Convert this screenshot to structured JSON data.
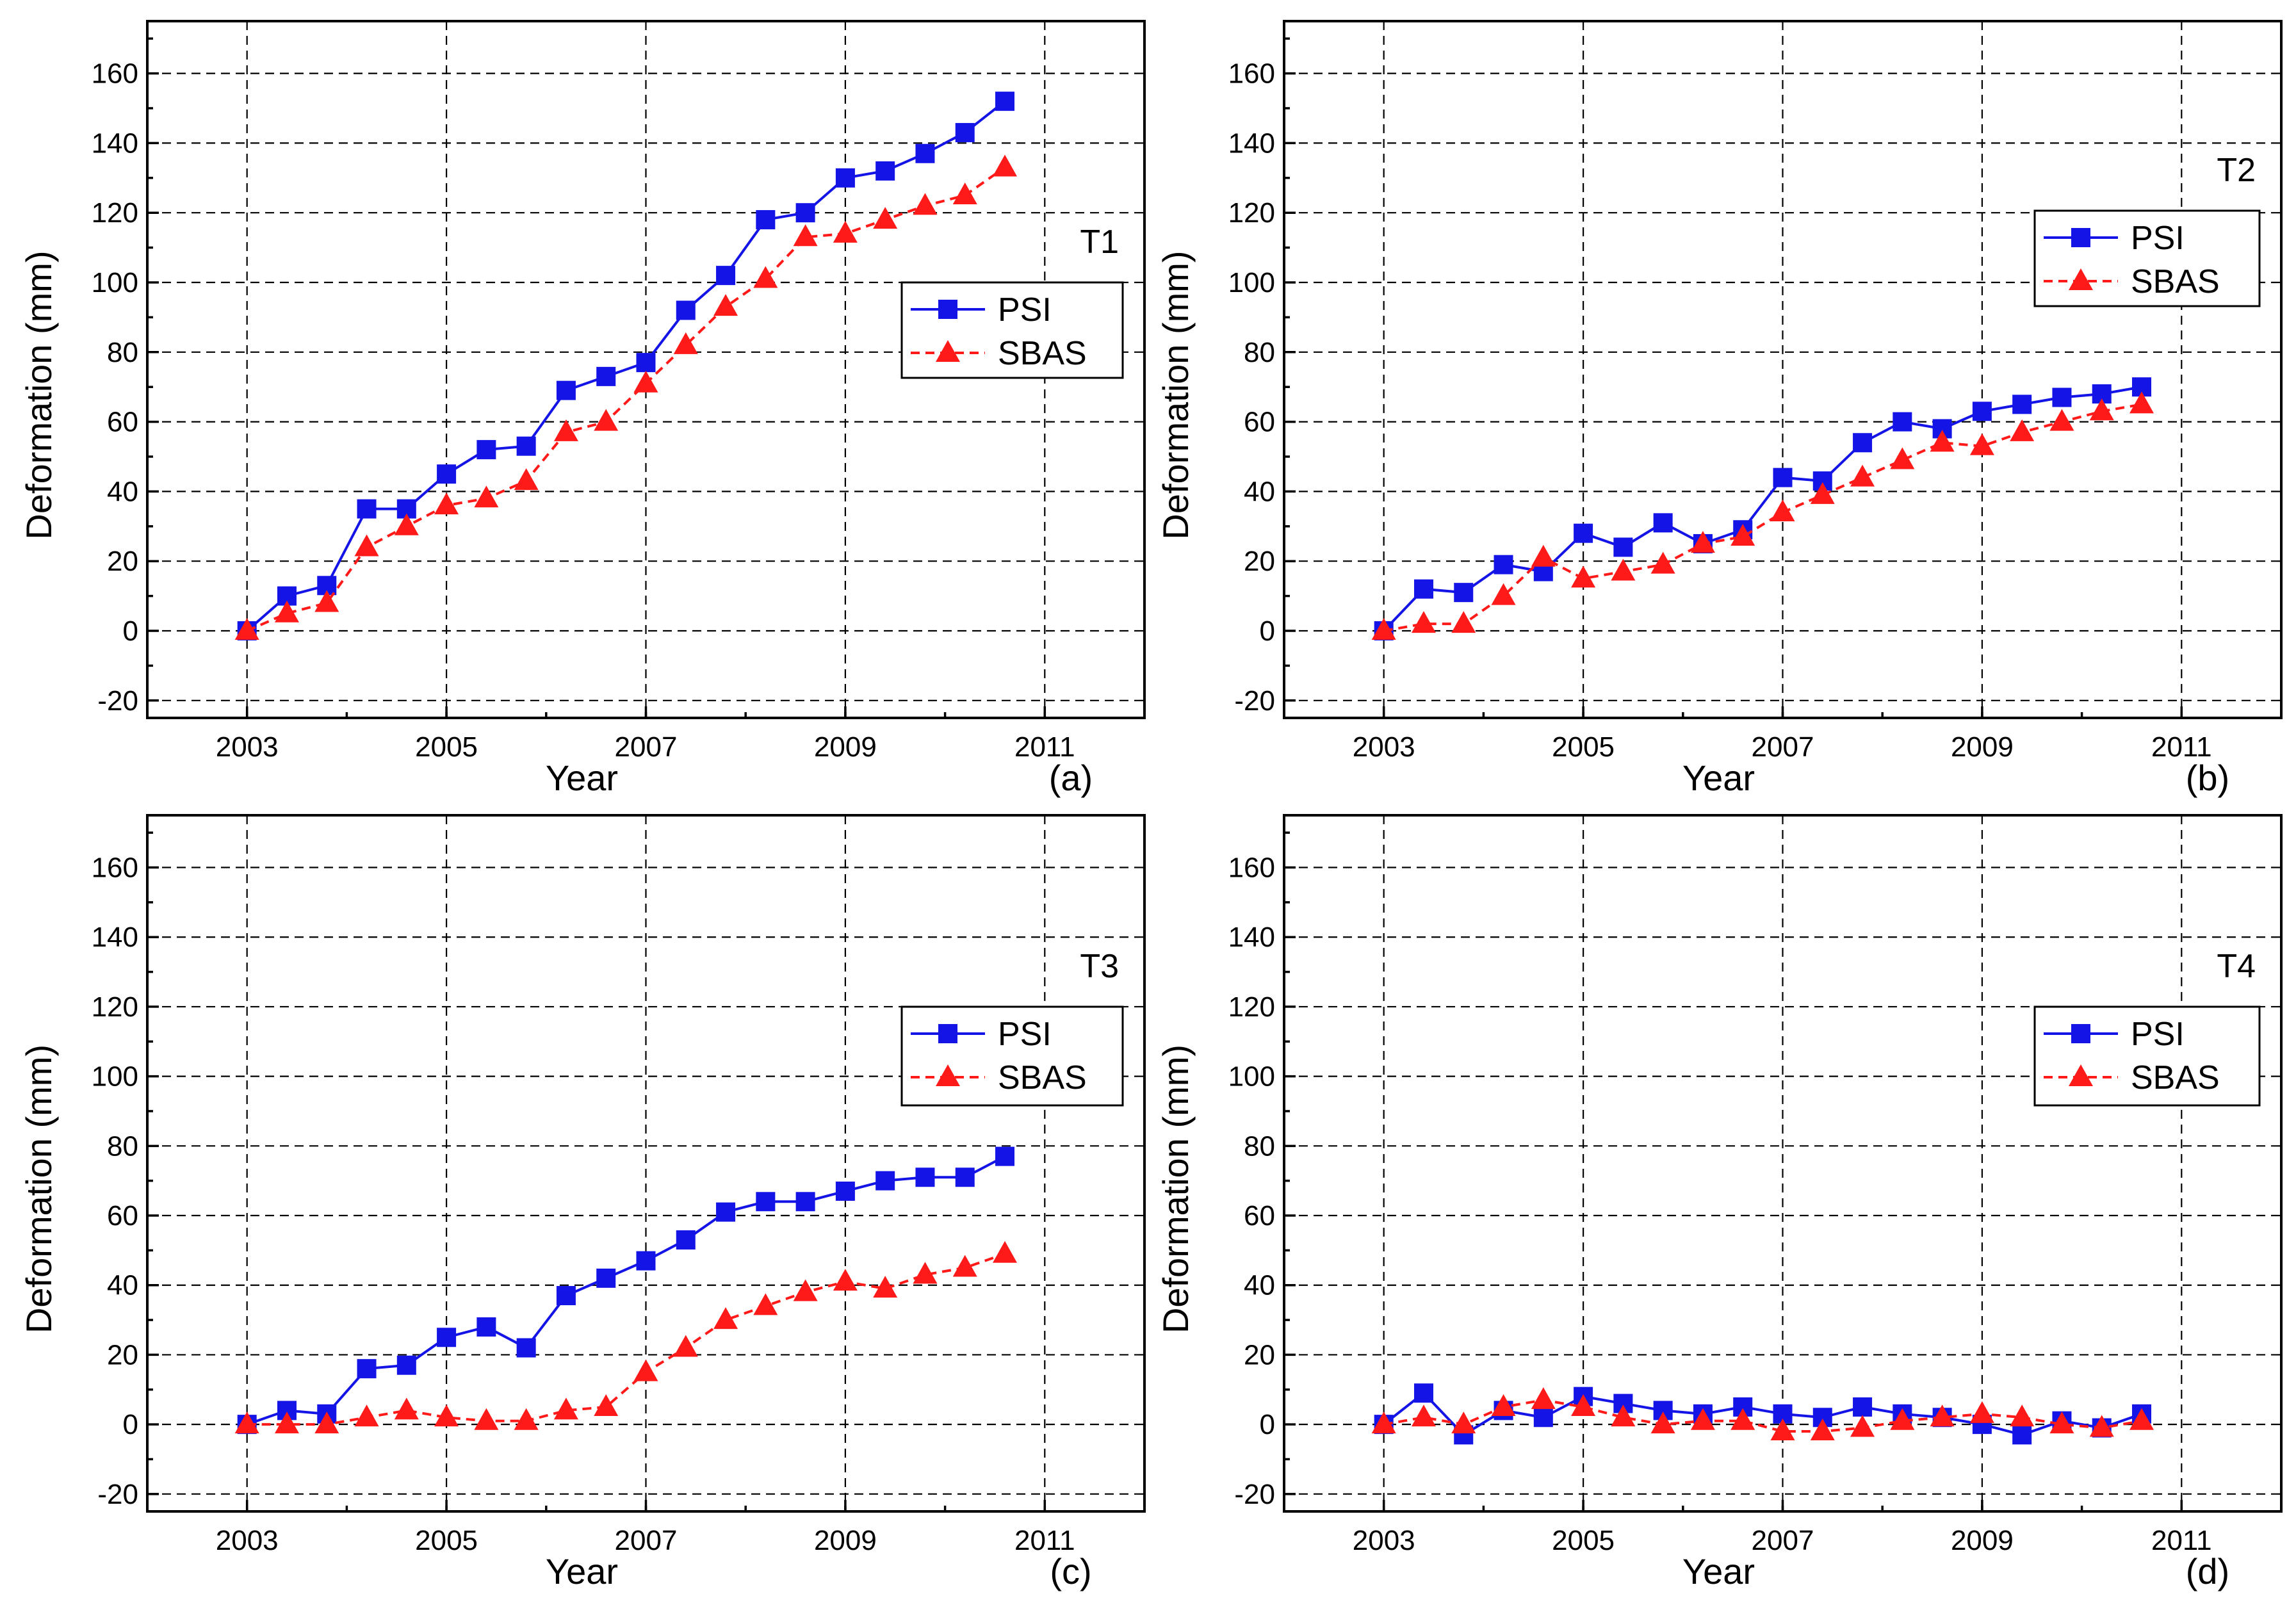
{
  "figure": {
    "series_style": {
      "PSI": {
        "color": "#1414e6",
        "marker": "square",
        "line": "solid"
      },
      "SBAS": {
        "color": "#ff1a1a",
        "marker": "triangle",
        "line": "dashed"
      }
    }
  },
  "chart_data": [
    {
      "type": "line",
      "panel_label": "(a)",
      "title": "T1",
      "xlabel": "Year",
      "ylabel": "Deformation (mm)",
      "xlim": [
        2002.0,
        2012.0
      ],
      "ylim": [
        -25,
        175
      ],
      "xticks": [
        "2003",
        "2005",
        "2007",
        "2009",
        "2011"
      ],
      "yticks": [
        "-20",
        "0",
        "20",
        "40",
        "60",
        "80",
        "100",
        "120",
        "140",
        "160"
      ],
      "grid": true,
      "legend_position": "right",
      "series": [
        {
          "name": "PSI",
          "x": [
            2003.0,
            2003.4,
            2003.8,
            2004.2,
            2004.6,
            2005.0,
            2005.4,
            2005.8,
            2006.2,
            2006.6,
            2007.0,
            2007.4,
            2007.8,
            2008.2,
            2008.6,
            2009.0,
            2009.4,
            2009.8,
            2010.2,
            2010.6
          ],
          "values": [
            0,
            10,
            13,
            35,
            35,
            45,
            52,
            53,
            69,
            73,
            77,
            92,
            102,
            118,
            120,
            130,
            132,
            137,
            143,
            152
          ]
        },
        {
          "name": "SBAS",
          "x": [
            2003.0,
            2003.4,
            2003.8,
            2004.2,
            2004.6,
            2005.0,
            2005.4,
            2005.8,
            2006.2,
            2006.6,
            2007.0,
            2007.4,
            2007.8,
            2008.2,
            2008.6,
            2009.0,
            2009.4,
            2009.8,
            2010.2,
            2010.6
          ],
          "values": [
            0,
            5,
            8,
            24,
            30,
            36,
            38,
            43,
            57,
            60,
            71,
            82,
            93,
            101,
            113,
            114,
            118,
            122,
            125,
            133
          ]
        }
      ]
    },
    {
      "type": "line",
      "panel_label": "(b)",
      "title": "T2",
      "xlabel": "Year",
      "ylabel": "Deformation (mm)",
      "xlim": [
        2002.0,
        2012.0
      ],
      "ylim": [
        -25,
        175
      ],
      "xticks": [
        "2003",
        "2005",
        "2007",
        "2009",
        "2011"
      ],
      "yticks": [
        "-20",
        "0",
        "20",
        "40",
        "60",
        "80",
        "100",
        "120",
        "140",
        "160"
      ],
      "grid": true,
      "legend_position": "right",
      "series": [
        {
          "name": "PSI",
          "x": [
            2003.0,
            2003.4,
            2003.8,
            2004.2,
            2004.6,
            2005.0,
            2005.4,
            2005.8,
            2006.2,
            2006.6,
            2007.0,
            2007.4,
            2007.8,
            2008.2,
            2008.6,
            2009.0,
            2009.4,
            2009.8,
            2010.2,
            2010.6
          ],
          "values": [
            0,
            12,
            11,
            19,
            17,
            28,
            24,
            31,
            25,
            29,
            44,
            43,
            54,
            60,
            58,
            63,
            65,
            67,
            68,
            70
          ]
        },
        {
          "name": "SBAS",
          "x": [
            2003.0,
            2003.4,
            2003.8,
            2004.2,
            2004.6,
            2005.0,
            2005.4,
            2005.8,
            2006.2,
            2006.6,
            2007.0,
            2007.4,
            2007.8,
            2008.2,
            2008.6,
            2009.0,
            2009.4,
            2009.8,
            2010.2,
            2010.6
          ],
          "values": [
            0,
            2,
            2,
            10,
            21,
            15,
            17,
            19,
            25,
            27,
            34,
            39,
            44,
            49,
            54,
            53,
            57,
            60,
            63,
            65
          ]
        }
      ]
    },
    {
      "type": "line",
      "panel_label": "(c)",
      "title": "T3",
      "xlabel": "Year",
      "ylabel": "Deformation (mm)",
      "xlim": [
        2002.0,
        2012.0
      ],
      "ylim": [
        -25,
        175
      ],
      "xticks": [
        "2003",
        "2005",
        "2007",
        "2009",
        "2011"
      ],
      "yticks": [
        "-20",
        "0",
        "20",
        "40",
        "60",
        "80",
        "100",
        "120",
        "140",
        "160"
      ],
      "grid": true,
      "legend_position": "right",
      "series": [
        {
          "name": "PSI",
          "x": [
            2003.0,
            2003.4,
            2003.8,
            2004.2,
            2004.6,
            2005.0,
            2005.4,
            2005.8,
            2006.2,
            2006.6,
            2007.0,
            2007.4,
            2007.8,
            2008.2,
            2008.6,
            2009.0,
            2009.4,
            2009.8,
            2010.2,
            2010.6
          ],
          "values": [
            0,
            4,
            3,
            16,
            17,
            25,
            28,
            22,
            37,
            42,
            47,
            53,
            61,
            64,
            64,
            67,
            70,
            71,
            71,
            77
          ]
        },
        {
          "name": "SBAS",
          "x": [
            2003.0,
            2003.4,
            2003.8,
            2004.2,
            2004.6,
            2005.0,
            2005.4,
            2005.8,
            2006.2,
            2006.6,
            2007.0,
            2007.4,
            2007.8,
            2008.2,
            2008.6,
            2009.0,
            2009.4,
            2009.8,
            2010.2,
            2010.6
          ],
          "values": [
            0,
            0,
            0,
            2,
            4,
            2,
            1,
            1,
            4,
            5,
            15,
            22,
            30,
            34,
            38,
            41,
            39,
            43,
            45,
            49
          ]
        }
      ]
    },
    {
      "type": "line",
      "panel_label": "(d)",
      "title": "T4",
      "xlabel": "Year",
      "ylabel": "Deformation (mm)",
      "xlim": [
        2002.0,
        2012.0
      ],
      "ylim": [
        -25,
        175
      ],
      "xticks": [
        "2003",
        "2005",
        "2007",
        "2009",
        "2011"
      ],
      "yticks": [
        "-20",
        "0",
        "20",
        "40",
        "60",
        "80",
        "100",
        "120",
        "140",
        "160"
      ],
      "grid": true,
      "legend_position": "right",
      "series": [
        {
          "name": "PSI",
          "x": [
            2003.0,
            2003.4,
            2003.8,
            2004.2,
            2004.6,
            2005.0,
            2005.4,
            2005.8,
            2006.2,
            2006.6,
            2007.0,
            2007.4,
            2007.8,
            2008.2,
            2008.6,
            2009.0,
            2009.4,
            2009.8,
            2010.2,
            2010.6
          ],
          "values": [
            0,
            9,
            -3,
            4,
            2,
            8,
            6,
            4,
            3,
            5,
            3,
            2,
            5,
            3,
            2,
            0,
            -3,
            1,
            -1,
            3
          ]
        },
        {
          "name": "SBAS",
          "x": [
            2003.0,
            2003.4,
            2003.8,
            2004.2,
            2004.6,
            2005.0,
            2005.4,
            2005.8,
            2006.2,
            2006.6,
            2007.0,
            2007.4,
            2007.8,
            2008.2,
            2008.6,
            2009.0,
            2009.4,
            2009.8,
            2010.2,
            2010.6
          ],
          "values": [
            0,
            2,
            0,
            5,
            7,
            5,
            2,
            0,
            1,
            1,
            -2,
            -2,
            -1,
            1,
            2,
            3,
            2,
            0,
            -1,
            1
          ]
        }
      ]
    }
  ]
}
